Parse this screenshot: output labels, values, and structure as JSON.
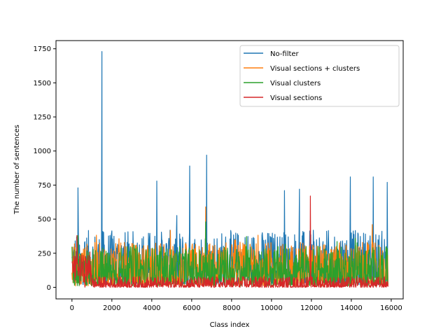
{
  "chart_data": {
    "type": "line",
    "title": "",
    "xlabel": "Class index",
    "ylabel": "The number of sentences",
    "xlim": [
      -800,
      16600
    ],
    "ylim": [
      -85,
      1810
    ],
    "xticks": [
      0,
      2000,
      4000,
      6000,
      8000,
      10000,
      12000,
      14000,
      16000
    ],
    "yticks": [
      0,
      250,
      500,
      750,
      1000,
      1250,
      1500,
      1750
    ],
    "xtick_labels": [
      "0",
      "2000",
      "4000",
      "6000",
      "8000",
      "10000",
      "12000",
      "14000",
      "16000"
    ],
    "ytick_labels": [
      "0",
      "250",
      "500",
      "750",
      "1000",
      "1250",
      "1500",
      "1750"
    ],
    "grid": false,
    "legend_position": "top-right",
    "n_classes": 15850,
    "series": [
      {
        "name": "No-filter",
        "color": "#1f77b4",
        "base_range": [
          20,
          420
        ],
        "peaks": [
          [
            300,
            730
          ],
          [
            1500,
            1730
          ],
          [
            4250,
            780
          ],
          [
            5900,
            890
          ],
          [
            6750,
            970
          ],
          [
            10650,
            710
          ],
          [
            11400,
            720
          ],
          [
            13950,
            810
          ],
          [
            15100,
            810
          ],
          [
            15800,
            770
          ]
        ]
      },
      {
        "name": "Visual sections + clusters",
        "color": "#ff7f0e",
        "base_range": [
          10,
          330
        ],
        "peaks": [
          [
            6700,
            590
          ],
          [
            15050,
            460
          ]
        ]
      },
      {
        "name": "Visual clusters",
        "color": "#2ca02c",
        "base_range": [
          10,
          300
        ],
        "peaks": [
          [
            6700,
            480
          ],
          [
            300,
            380
          ]
        ]
      },
      {
        "name": "Visual sections",
        "color": "#d62728",
        "base_range": [
          0,
          80
        ],
        "peaks": [
          [
            250,
            380
          ],
          [
            11950,
            670
          ],
          [
            900,
            260
          ]
        ]
      }
    ]
  }
}
